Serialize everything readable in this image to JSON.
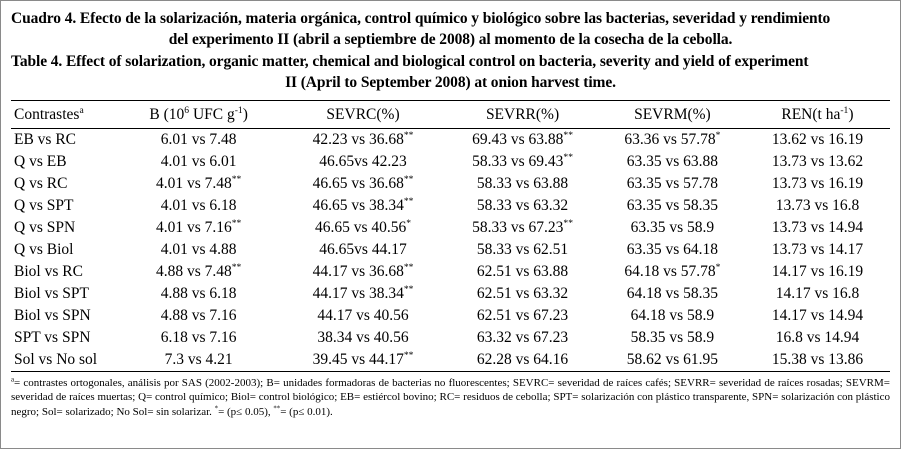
{
  "title": {
    "es_line1": "Cuadro 4. Efecto de la solarización, materia orgánica, control químico y biológico sobre las bacterias, severidad y rendimiento",
    "es_line2": "del experimento II (abril a septiembre de 2008) al momento de la cosecha de la cebolla.",
    "en_line1": "Table 4. Effect of solarization, organic matter, chemical and biological control on bacteria, severity and yield of experiment",
    "en_line2": "II (April to September 2008) at onion harvest time."
  },
  "table": {
    "headers": [
      "Contrastes^{a}",
      "B (10^{6} UFC g^{-1})",
      "SEVRC(%)",
      "SEVRR(%)",
      "SEVRM(%)",
      "REN(t ha^{-1})"
    ],
    "rows": [
      [
        "EB vs RC",
        "6.01 vs 7.48",
        "42.23 vs 36.68**",
        "69.43 vs 63.88**",
        "63.36 vs 57.78*",
        "13.62 vs 16.19"
      ],
      [
        "Q vs EB",
        "4.01 vs 6.01",
        "46.65vs 42.23",
        "58.33 vs 69.43**",
        "63.35 vs 63.88",
        "13.73 vs 13.62"
      ],
      [
        "Q vs RC",
        "4.01 vs 7.48**",
        "46.65 vs 36.68**",
        "58.33 vs 63.88",
        "63.35 vs 57.78",
        "13.73 vs 16.19"
      ],
      [
        "Q vs SPT",
        "4.01 vs 6.18",
        "46.65 vs 38.34**",
        "58.33 vs 63.32",
        "63.35 vs 58.35",
        "13.73 vs 16.8"
      ],
      [
        "Q vs SPN",
        "4.01 vs 7.16**",
        "46.65 vs 40.56*",
        "58.33 vs 67.23**",
        "63.35 vs 58.9",
        "13.73 vs 14.94"
      ],
      [
        "Q vs Biol",
        "4.01 vs 4.88",
        "46.65vs 44.17",
        "58.33 vs 62.51",
        "63.35 vs 64.18",
        "13.73 vs 14.17"
      ],
      [
        "Biol vs RC",
        "4.88 vs 7.48**",
        "44.17 vs 36.68**",
        "62.51 vs 63.88",
        "64.18 vs 57.78*",
        "14.17 vs 16.19"
      ],
      [
        "Biol vs SPT",
        "4.88 vs 6.18",
        "44.17 vs 38.34**",
        "62.51 vs 63.32",
        "64.18 vs 58.35",
        "14.17 vs 16.8"
      ],
      [
        "Biol vs SPN",
        "4.88 vs 7.16",
        "44.17 vs 40.56",
        "62.51 vs 67.23",
        "64.18 vs 58.9",
        "14.17 vs 14.94"
      ],
      [
        "SPT vs SPN",
        "6.18 vs 7.16",
        "38.34 vs 40.56",
        "63.32 vs 67.23",
        "58.35 vs 58.9",
        "16.8 vs 14.94"
      ],
      [
        "Sol vs No sol",
        "7.3 vs 4.21",
        "39.45 vs 44.17**",
        "62.28 vs 64.16",
        "58.62 vs 61.95",
        "15.38 vs 13.86"
      ]
    ],
    "col_widths": [
      "12%",
      "18.7%",
      "18.7%",
      "17.6%",
      "16.5%",
      "16.5%"
    ]
  },
  "footnote": "^{a}= contrastes ortogonales, análisis por SAS (2002-2003); B= unidades formadoras de bacterias no fluorescentes; SEVRC= severidad de raíces cafés; SEVRR= severidad de raíces rosadas; SEVRM= severidad de raíces muertas; Q= control químico; Biol= control biológico; EB= estiércol bovino; RC= residuos de cebolla; SPT= solarización con plástico transparente, SPN= solarización con plástico negro; Sol= solarizado; No Sol= sin solarizar. *= (p≤ 0.05), **= (p≤ 0.01)."
}
